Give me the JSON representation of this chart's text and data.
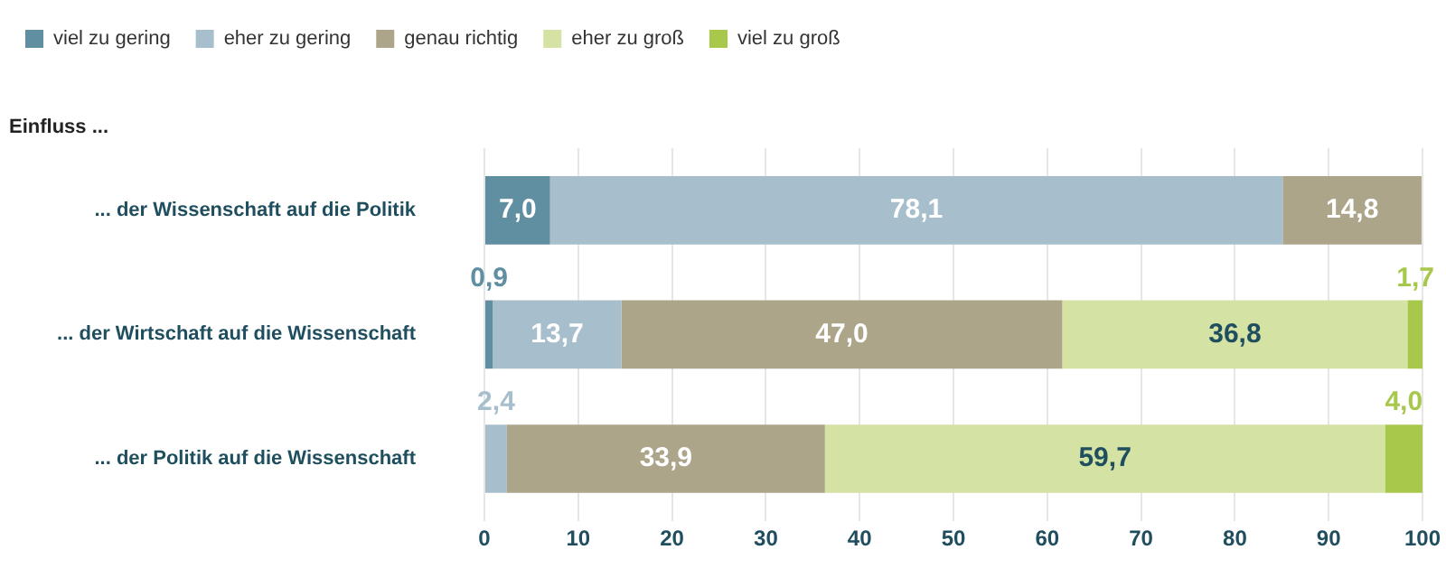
{
  "chart_data": {
    "type": "bar",
    "orientation": "horizontal",
    "stacked": true,
    "ylabel": "Einfluss ...",
    "categories": [
      "... der Wissenschaft auf die Politik",
      "... der Wirtschaft auf die Wissenschaft",
      "... der Politik auf die Wissenschaft"
    ],
    "series": [
      {
        "name": "viel zu gering",
        "color": "#5f8fa0",
        "values": [
          7.0,
          0.9,
          null
        ],
        "value_labels": [
          "7,0",
          "0,9",
          null
        ]
      },
      {
        "name": "eher zu gering",
        "color": "#a7bfcc",
        "values": [
          78.1,
          13.7,
          2.4
        ],
        "value_labels": [
          "78,1",
          "13,7",
          "2,4"
        ]
      },
      {
        "name": "genau richtig",
        "color": "#aca58a",
        "values": [
          14.8,
          47.0,
          33.9
        ],
        "value_labels": [
          "14,8",
          "47,0",
          "33,9"
        ]
      },
      {
        "name": "eher zu groß",
        "color": "#d4e2a4",
        "values": [
          null,
          36.8,
          59.7
        ],
        "value_labels": [
          null,
          "36,8",
          "59,7"
        ]
      },
      {
        "name": "viel zu groß",
        "color": "#a8c84c",
        "values": [
          null,
          1.7,
          4.0
        ],
        "value_labels": [
          null,
          "1,7",
          "4,0"
        ]
      }
    ],
    "xlim": [
      0,
      100
    ],
    "xticks": [
      0,
      10,
      20,
      30,
      40,
      50,
      60,
      70,
      80,
      90,
      100
    ],
    "grid": "x",
    "legend": "top left"
  }
}
